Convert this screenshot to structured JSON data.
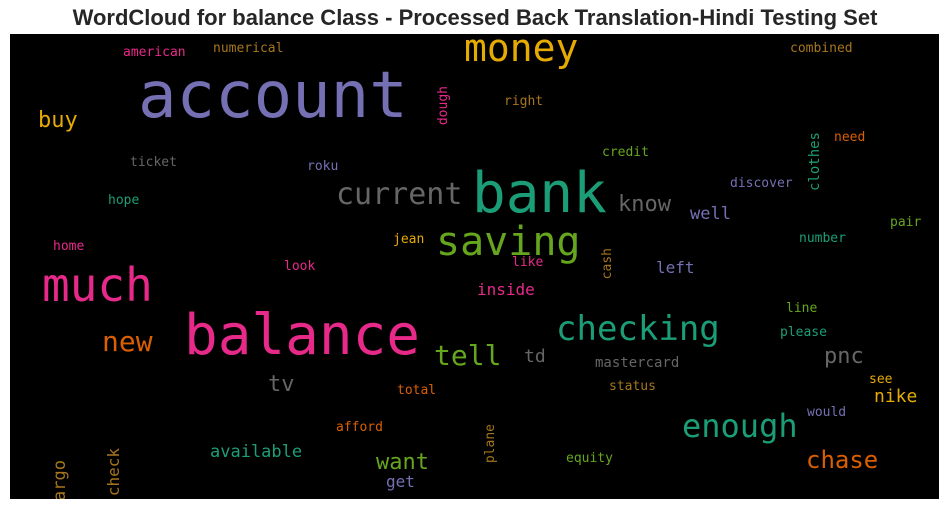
{
  "chart_data": {
    "type": "wordcloud",
    "title": "WordCloud for balance Class - Processed Back Translation-Hindi Testing Set",
    "words": [
      {
        "text": "account",
        "color": "#7570b3"
      },
      {
        "text": "balance",
        "color": "#e7298a"
      },
      {
        "text": "bank",
        "color": "#1b9e77"
      },
      {
        "text": "money",
        "color": "#e6ab02"
      },
      {
        "text": "much",
        "color": "#e7298a"
      },
      {
        "text": "saving",
        "color": "#66a61e"
      },
      {
        "text": "checking",
        "color": "#1b9e77"
      },
      {
        "text": "current",
        "color": "#666666"
      },
      {
        "text": "enough",
        "color": "#1b9e77"
      },
      {
        "text": "new",
        "color": "#d95f02"
      },
      {
        "text": "tell",
        "color": "#66a61e"
      },
      {
        "text": "chase",
        "color": "#d95f02"
      },
      {
        "text": "know",
        "color": "#666666"
      },
      {
        "text": "pnc",
        "color": "#666666"
      },
      {
        "text": "buy",
        "color": "#e6ab02"
      },
      {
        "text": "tv",
        "color": "#666666"
      },
      {
        "text": "want",
        "color": "#66a61e"
      },
      {
        "text": "nike",
        "color": "#e6ab02"
      },
      {
        "text": "available",
        "color": "#1b9e77"
      },
      {
        "text": "fargo",
        "color": "#a6761d"
      },
      {
        "text": "check",
        "color": "#a6761d"
      },
      {
        "text": "well",
        "color": "#7570b3"
      },
      {
        "text": "left",
        "color": "#7570b3"
      },
      {
        "text": "inside",
        "color": "#e7298a"
      },
      {
        "text": "td",
        "color": "#666666"
      },
      {
        "text": "get",
        "color": "#7570b3"
      },
      {
        "text": "clothes",
        "color": "#1b9e77"
      },
      {
        "text": "dough",
        "color": "#e7298a"
      },
      {
        "text": "mastercard",
        "color": "#666666"
      },
      {
        "text": "american",
        "color": "#e7298a"
      },
      {
        "text": "numerical",
        "color": "#a6761d"
      },
      {
        "text": "combined",
        "color": "#a6761d"
      },
      {
        "text": "right",
        "color": "#a6761d"
      },
      {
        "text": "need",
        "color": "#d95f02"
      },
      {
        "text": "ticket",
        "color": "#666666"
      },
      {
        "text": "credit",
        "color": "#66a61e"
      },
      {
        "text": "roku",
        "color": "#7570b3"
      },
      {
        "text": "discover",
        "color": "#7570b3"
      },
      {
        "text": "hope",
        "color": "#1b9e77"
      },
      {
        "text": "jean",
        "color": "#e6ab02"
      },
      {
        "text": "cash",
        "color": "#a6761d"
      },
      {
        "text": "home",
        "color": "#e7298a"
      },
      {
        "text": "number",
        "color": "#1b9e77"
      },
      {
        "text": "pair",
        "color": "#66a61e"
      },
      {
        "text": "like",
        "color": "#e7298a"
      },
      {
        "text": "look",
        "color": "#e7298a"
      },
      {
        "text": "line",
        "color": "#66a61e"
      },
      {
        "text": "please",
        "color": "#1b9e77"
      },
      {
        "text": "total",
        "color": "#d95f02"
      },
      {
        "text": "status",
        "color": "#a6761d"
      },
      {
        "text": "see",
        "color": "#e6ab02"
      },
      {
        "text": "afford",
        "color": "#d95f02"
      },
      {
        "text": "plane",
        "color": "#a6761d"
      },
      {
        "text": "would",
        "color": "#7570b3"
      },
      {
        "text": "equity",
        "color": "#66a61e"
      }
    ]
  }
}
